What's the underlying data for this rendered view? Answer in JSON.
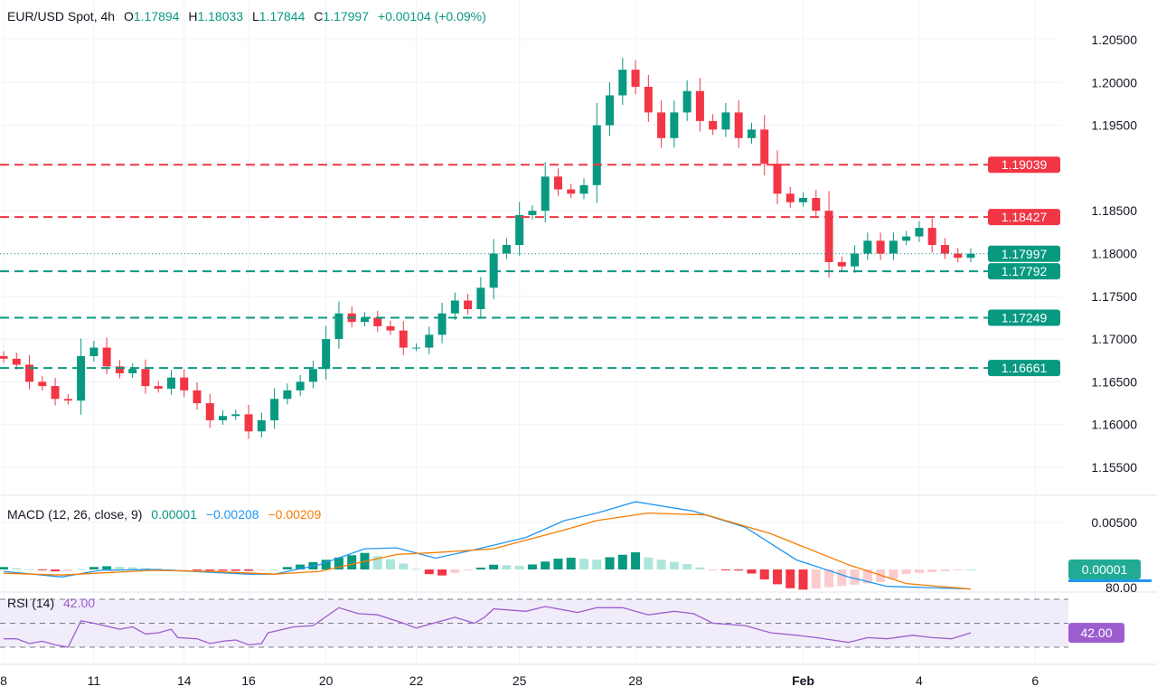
{
  "header": {
    "symbol": "EUR/USD Spot, 4h",
    "open_label": "O",
    "open": "1.17894",
    "high_label": "H",
    "high": "1.18033",
    "low_label": "L",
    "low": "1.17844",
    "close_label": "C",
    "close": "1.17997",
    "change": "+0.00104 (+0.09%)"
  },
  "macd_legend": {
    "title": "MACD (12, 26, close, 9)",
    "hist": "0.00001",
    "macd": "−0.00208",
    "signal": "−0.00209"
  },
  "rsi_legend": {
    "title": "RSI (14)",
    "value": "42.00"
  },
  "colors": {
    "up": "#089981",
    "down": "#f23645",
    "macd": "#2196f3",
    "signal": "#f57c00",
    "rsi": "#9c5ecf",
    "rsi_band": "#f1ecfa"
  },
  "chart_data": [
    {
      "type": "candlestick",
      "title": "EUR/USD Spot, 4h",
      "ylim": [
        1.151,
        1.208
      ],
      "yticks": [
        "1.20500",
        "1.20000",
        "1.19500",
        "1.18500",
        "1.18000",
        "1.17500",
        "1.17000",
        "1.16500",
        "1.16000",
        "1.15500"
      ],
      "xticks": [
        {
          "label": "8",
          "index": 0
        },
        {
          "label": "11",
          "index": 7
        },
        {
          "label": "14",
          "index": 14
        },
        {
          "label": "16",
          "index": 19
        },
        {
          "label": "20",
          "index": 25
        },
        {
          "label": "22",
          "index": 32
        },
        {
          "label": "25",
          "index": 40
        },
        {
          "label": "28",
          "index": 49
        },
        {
          "label": "Feb",
          "index": 62
        },
        {
          "label": "4",
          "index": 71
        },
        {
          "label": "6",
          "index": 80
        }
      ],
      "close": [
        1.1677,
        1.167,
        1.165,
        1.1645,
        1.163,
        1.1628,
        1.168,
        1.169,
        1.1668,
        1.166,
        1.1665,
        1.1645,
        1.1642,
        1.1655,
        1.164,
        1.1625,
        1.1605,
        1.161,
        1.1612,
        1.1592,
        1.1605,
        1.163,
        1.164,
        1.165,
        1.1665,
        1.17,
        1.173,
        1.172,
        1.1725,
        1.1715,
        1.171,
        1.169,
        1.169,
        1.1705,
        1.173,
        1.1745,
        1.1735,
        1.176,
        1.18,
        1.181,
        1.1845,
        1.185,
        1.189,
        1.1875,
        1.187,
        1.188,
        1.195,
        1.1985,
        1.2015,
        1.1995,
        1.1965,
        1.1935,
        1.1965,
        1.199,
        1.1955,
        1.1945,
        1.1965,
        1.1935,
        1.1945,
        1.1905,
        1.187,
        1.186,
        1.1865,
        1.185,
        1.179,
        1.1785,
        1.18,
        1.1815,
        1.18,
        1.1815,
        1.182,
        1.183,
        1.181,
        1.18,
        1.1795,
        1.17997
      ],
      "levels": [
        {
          "value": "1.19039",
          "kind": "resistance"
        },
        {
          "value": "1.18427",
          "kind": "resistance"
        },
        {
          "value": "1.17792",
          "kind": "support"
        },
        {
          "value": "1.17249",
          "kind": "support"
        },
        {
          "value": "1.16661",
          "kind": "support"
        }
      ],
      "last_price": "1.17997"
    },
    {
      "type": "line",
      "title": "MACD (12, 26, close, 9)",
      "ylim": [
        -0.0018,
        0.0085
      ],
      "yticks": [
        "0.00500"
      ],
      "last_hist": "0.00001",
      "macd": [
        [
          0,
          -0.0002
        ],
        [
          4.5,
          -0.0008
        ],
        [
          7.5,
          -0.0001
        ],
        [
          11.5,
          0.0
        ],
        [
          16,
          -0.0003
        ],
        [
          19,
          -0.0005
        ],
        [
          21,
          -0.0005
        ],
        [
          24.5,
          0.0005
        ],
        [
          28,
          0.0022
        ],
        [
          30.5,
          0.0023
        ],
        [
          33.5,
          0.0012
        ],
        [
          36.5,
          0.0021
        ],
        [
          40.5,
          0.0034
        ],
        [
          43.5,
          0.0052
        ],
        [
          46,
          0.006
        ],
        [
          49,
          0.0072
        ],
        [
          53.5,
          0.0062
        ],
        [
          57.5,
          0.0045
        ],
        [
          61.5,
          0.001
        ],
        [
          65.5,
          -0.0008
        ],
        [
          68.5,
          -0.0018
        ],
        [
          75,
          -0.00208
        ]
      ],
      "signal": [
        [
          0,
          -0.0004
        ],
        [
          4.5,
          -0.0006
        ],
        [
          11.5,
          -0.0001
        ],
        [
          16,
          -0.0002
        ],
        [
          21,
          -0.0005
        ],
        [
          24.5,
          -0.0002
        ],
        [
          30.5,
          0.0016
        ],
        [
          33.5,
          0.0018
        ],
        [
          38,
          0.0022
        ],
        [
          43.5,
          0.0042
        ],
        [
          46,
          0.0052
        ],
        [
          50,
          0.006
        ],
        [
          54.5,
          0.0058
        ],
        [
          59.5,
          0.0038
        ],
        [
          65.5,
          0.0005
        ],
        [
          70,
          -0.0015
        ],
        [
          75,
          -0.00209
        ]
      ]
    },
    {
      "type": "line",
      "title": "RSI (14)",
      "ylim": [
        15,
        82
      ],
      "yticks": [
        "80.00"
      ],
      "band": [
        30,
        70
      ],
      "midline": 50,
      "last_value": "42.00",
      "rsi": [
        [
          0,
          37
        ],
        [
          1,
          37
        ],
        [
          2,
          33
        ],
        [
          3,
          35
        ],
        [
          4,
          32
        ],
        [
          5,
          30
        ],
        [
          6,
          52
        ],
        [
          7,
          50
        ],
        [
          9,
          45
        ],
        [
          10,
          47
        ],
        [
          11,
          41
        ],
        [
          12,
          42
        ],
        [
          13,
          45
        ],
        [
          13.5,
          38
        ],
        [
          15,
          37
        ],
        [
          16,
          33
        ],
        [
          17,
          35
        ],
        [
          18,
          36
        ],
        [
          19,
          32
        ],
        [
          20,
          33
        ],
        [
          20.5,
          42
        ],
        [
          22.5,
          47
        ],
        [
          24,
          48
        ],
        [
          26,
          63
        ],
        [
          27.5,
          58
        ],
        [
          29,
          57
        ],
        [
          31,
          50
        ],
        [
          32,
          46
        ],
        [
          33,
          49
        ],
        [
          34,
          52
        ],
        [
          35,
          55
        ],
        [
          36.5,
          50
        ],
        [
          37.3,
          55
        ],
        [
          38,
          62
        ],
        [
          40.5,
          60
        ],
        [
          42,
          64
        ],
        [
          44.5,
          59
        ],
        [
          46,
          63
        ],
        [
          48,
          63
        ],
        [
          50,
          57
        ],
        [
          52,
          60
        ],
        [
          53.5,
          58
        ],
        [
          55,
          50
        ],
        [
          57.5,
          48
        ],
        [
          59.5,
          42
        ],
        [
          61.5,
          40
        ],
        [
          63,
          38
        ],
        [
          65.5,
          34
        ],
        [
          67,
          38
        ],
        [
          68.5,
          37
        ],
        [
          70.5,
          40
        ],
        [
          72,
          38
        ],
        [
          73.5,
          37
        ],
        [
          75,
          42
        ]
      ]
    }
  ]
}
